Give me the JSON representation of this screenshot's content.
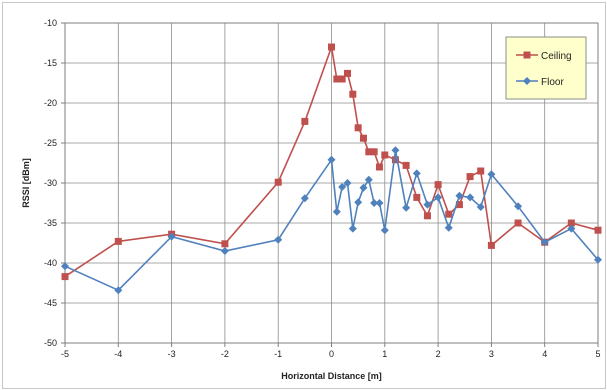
{
  "chart_data": {
    "type": "line",
    "title": "",
    "xlabel": "Horizontal Distance [m]",
    "ylabel": "RSSI [dBm]",
    "xlim": [
      -5,
      5
    ],
    "ylim": [
      -50,
      -10
    ],
    "x_ticks": [
      "-5",
      "-4",
      "-3",
      "-2",
      "-1",
      "0",
      "1",
      "2",
      "3",
      "4",
      "5"
    ],
    "y_ticks": [
      "-10",
      "-15",
      "-20",
      "-25",
      "-30",
      "-35",
      "-40",
      "-45",
      "-50"
    ],
    "grid": true,
    "legend_position": "top-right",
    "series": [
      {
        "name": "Ceiling",
        "color": "#c0504d",
        "marker": "square",
        "points": [
          [
            -5,
            -41.7
          ],
          [
            -4,
            -37.3
          ],
          [
            -3,
            -36.4
          ],
          [
            -2,
            -37.6
          ],
          [
            -1,
            -29.9
          ],
          [
            -0.5,
            -22.3
          ],
          [
            0,
            -13
          ],
          [
            0.1,
            -17
          ],
          [
            0.2,
            -17
          ],
          [
            0.3,
            -16.3
          ],
          [
            0.4,
            -18.9
          ],
          [
            0.5,
            -23.1
          ],
          [
            0.6,
            -24.4
          ],
          [
            0.7,
            -26.1
          ],
          [
            0.8,
            -26.1
          ],
          [
            0.9,
            -28
          ],
          [
            1.0,
            -26.5
          ],
          [
            1.2,
            -27.1
          ],
          [
            1.4,
            -27.8
          ],
          [
            1.6,
            -31.8
          ],
          [
            1.8,
            -34.1
          ],
          [
            2.0,
            -30.2
          ],
          [
            2.2,
            -33.9
          ],
          [
            2.4,
            -32.7
          ],
          [
            2.6,
            -29.2
          ],
          [
            2.8,
            -28.5
          ],
          [
            3.0,
            -37.8
          ],
          [
            3.5,
            -35
          ],
          [
            4.0,
            -37.4
          ],
          [
            4.5,
            -35
          ],
          [
            5.0,
            -35.9
          ]
        ]
      },
      {
        "name": "Floor",
        "color": "#4f81bd",
        "marker": "diamond",
        "points": [
          [
            -5,
            -40.4
          ],
          [
            -4,
            -43.4
          ],
          [
            -3,
            -36.7
          ],
          [
            -2,
            -38.5
          ],
          [
            -1,
            -37.1
          ],
          [
            -0.5,
            -31.9
          ],
          [
            0,
            -27.1
          ],
          [
            0.1,
            -33.6
          ],
          [
            0.2,
            -30.5
          ],
          [
            0.3,
            -30
          ],
          [
            0.4,
            -35.7
          ],
          [
            0.5,
            -32.4
          ],
          [
            0.6,
            -30.6
          ],
          [
            0.7,
            -29.6
          ],
          [
            0.8,
            -32.5
          ],
          [
            0.9,
            -32.5
          ],
          [
            1.0,
            -35.9
          ],
          [
            1.2,
            -25.9
          ],
          [
            1.4,
            -33.1
          ],
          [
            1.6,
            -28.8
          ],
          [
            1.8,
            -32.7
          ],
          [
            2.0,
            -31.8
          ],
          [
            2.2,
            -35.6
          ],
          [
            2.4,
            -31.6
          ],
          [
            2.6,
            -31.8
          ],
          [
            2.8,
            -33
          ],
          [
            3.0,
            -28.9
          ],
          [
            3.5,
            -32.9
          ],
          [
            4.0,
            -37.4
          ],
          [
            4.5,
            -35.7
          ],
          [
            5.0,
            -39.6
          ]
        ]
      }
    ]
  }
}
